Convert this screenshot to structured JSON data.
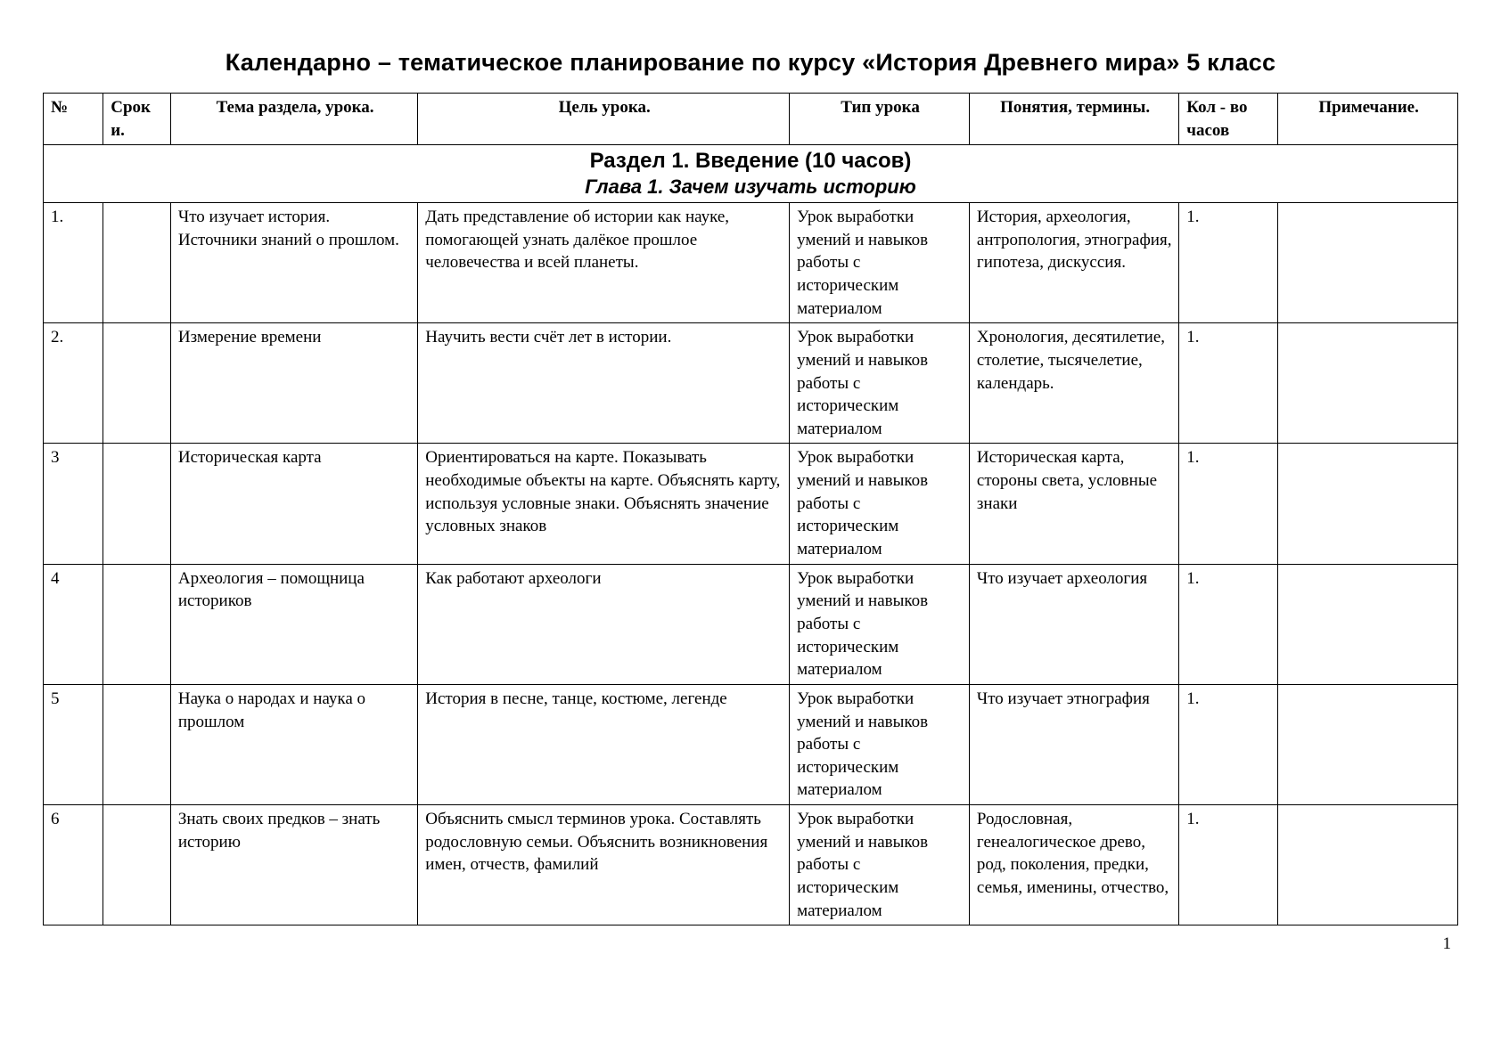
{
  "doc": {
    "title": "Календарно – тематическое планирование по курсу «История Древнего мира» 5 класс",
    "page_number": "1"
  },
  "headers": {
    "num": "№",
    "date": "Срок и.",
    "topic": "Тема раздела, урока.",
    "goal": "Цель урока.",
    "type": "Тип урока",
    "terms": "Понятия, термины.",
    "hours": "Кол - во часов",
    "note": "Примечание."
  },
  "section": {
    "title": "Раздел 1. Введение (10 часов)",
    "subtitle": "Глава 1. Зачем изучать историю"
  },
  "rows": [
    {
      "num": "1.",
      "date": "",
      "topic": "Что изучает история. Источники знаний о прошлом.",
      "goal": "Дать представление об истории как науке, помогающей узнать далёкое прошлое человечества и всей планеты.",
      "type": "Урок выработки умений и навыков работы с историческим материалом",
      "terms": "История, археология, антропология, этнография, гипотеза, дискуссия.",
      "hours": "1.",
      "note": ""
    },
    {
      "num": "2.",
      "date": "",
      "topic": "Измерение времени",
      "goal": "Научить вести счёт лет в истории.",
      "type": "Урок выработки умений и навыков работы с историческим материалом",
      "terms": "Хронология, десятилетие, столетие, тысячелетие, календарь.",
      "hours": "1.",
      "note": ""
    },
    {
      "num": "3",
      "date": "",
      "topic": "Историческая карта",
      "goal": "Ориентироваться на карте. Показывать необходимые объекты на карте. Объяснять карту, используя условные знаки. Объяснять значение условных знаков",
      "type": "Урок выработки умений и навыков работы с историческим материалом",
      "terms": "Историческая карта, стороны света, условные знаки",
      "hours": "1.",
      "note": ""
    },
    {
      "num": "4",
      "date": "",
      "topic": "Археология – помощница историков",
      "goal": "Как работают археологи",
      "type": "Урок выработки умений и навыков работы с историческим материалом",
      "terms": "Что изучает археология",
      "hours": "1.",
      "note": ""
    },
    {
      "num": "5",
      "date": "",
      "topic": "Наука о народах и наука о прошлом",
      "goal": "История в песне, танце, костюме, легенде",
      "type": "Урок выработки умений и навыков работы с историческим материалом",
      "terms": "Что изучает этнография",
      "hours": "1.",
      "note": ""
    },
    {
      "num": "6",
      "date": "",
      "topic": "Знать своих предков – знать историю",
      "goal": "Объяснить смысл терминов урока. Составлять родословную семьи. Объяснить возникновения имен, отчеств, фамилий",
      "type": "Урок выработки умений и навыков работы с историческим материалом",
      "terms": "Родословная, генеалогическое древо, род, поколения, предки, семья, именины, отчество,",
      "hours": "1.",
      "note": ""
    }
  ],
  "style": {
    "background_color": "#ffffff",
    "text_color": "#000000",
    "border_color": "#000000",
    "title_fontsize": 27,
    "section_title_fontsize": 24,
    "section_sub_fontsize": 22,
    "cell_fontsize": 19
  }
}
